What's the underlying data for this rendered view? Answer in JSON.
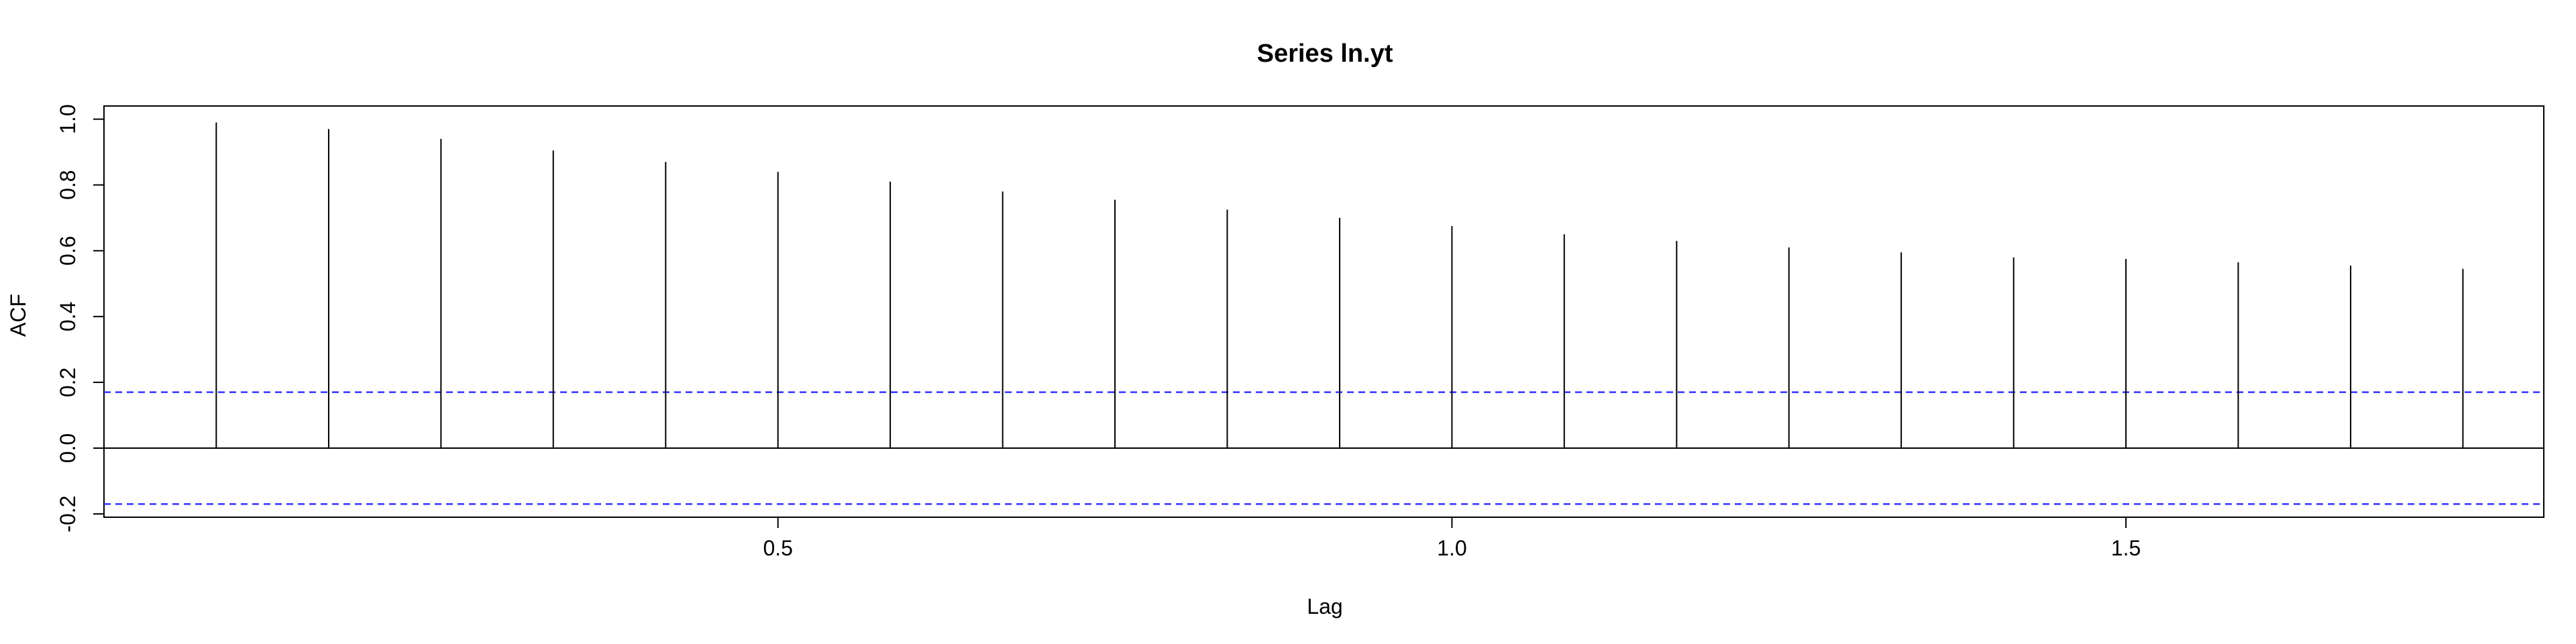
{
  "chart_data": {
    "type": "bar",
    "title": "Series ln.yt",
    "xlabel": "Lag",
    "ylabel": "ACF",
    "xlim": [
      0.0,
      1.81
    ],
    "ylim": [
      -0.21,
      1.04
    ],
    "x_ticks": [
      0.5,
      1.0,
      1.5
    ],
    "x_tick_labels": [
      "0.5",
      "1.0",
      "1.5"
    ],
    "y_ticks": [
      -0.2,
      0.0,
      0.2,
      0.4,
      0.6,
      0.8,
      1.0
    ],
    "y_tick_labels": [
      "-0.2",
      "0.0",
      "0.2",
      "0.4",
      "0.6",
      "0.8",
      "1.0"
    ],
    "x": [
      0.0833,
      0.1667,
      0.25,
      0.3333,
      0.4167,
      0.5,
      0.5833,
      0.6667,
      0.75,
      0.8333,
      0.9167,
      1.0,
      1.0833,
      1.1667,
      1.25,
      1.3333,
      1.4167,
      1.5,
      1.5833,
      1.6667,
      1.75
    ],
    "values": [
      0.99,
      0.97,
      0.94,
      0.905,
      0.87,
      0.84,
      0.81,
      0.78,
      0.755,
      0.725,
      0.7,
      0.675,
      0.65,
      0.63,
      0.61,
      0.595,
      0.58,
      0.575,
      0.565,
      0.555,
      0.545
    ],
    "confidence_bounds": [
      0.17,
      -0.17
    ],
    "bar_color": "#000000",
    "bound_color": "#3333ff",
    "grid": false,
    "legend": "none"
  }
}
